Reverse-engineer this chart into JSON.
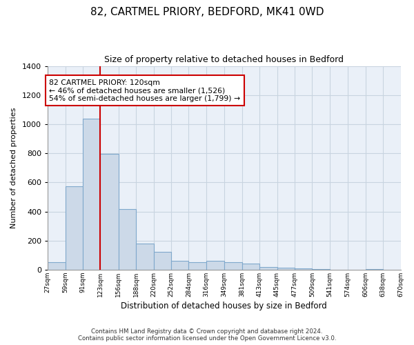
{
  "title": "82, CARTMEL PRIORY, BEDFORD, MK41 0WD",
  "subtitle": "Size of property relative to detached houses in Bedford",
  "xlabel": "Distribution of detached houses by size in Bedford",
  "ylabel": "Number of detached properties",
  "bar_color": "#ccd9e8",
  "bar_edge_color": "#7fa8cc",
  "annotation_text_line1": "82 CARTMEL PRIORY: 120sqm",
  "annotation_text_line2": "← 46% of detached houses are smaller (1,526)",
  "annotation_text_line3": "54% of semi-detached houses are larger (1,799) →",
  "bin_edges": [
    27,
    59,
    91,
    123,
    156,
    188,
    220,
    252,
    284,
    316,
    349,
    381,
    413,
    445,
    477,
    509,
    541,
    574,
    606,
    638,
    670
  ],
  "bin_labels": [
    "27sqm",
    "59sqm",
    "91sqm",
    "123sqm",
    "156sqm",
    "188sqm",
    "220sqm",
    "252sqm",
    "284sqm",
    "316sqm",
    "349sqm",
    "381sqm",
    "413sqm",
    "445sqm",
    "477sqm",
    "509sqm",
    "541sqm",
    "574sqm",
    "606sqm",
    "638sqm",
    "670sqm"
  ],
  "counts": [
    50,
    575,
    1040,
    795,
    415,
    180,
    125,
    62,
    50,
    60,
    50,
    40,
    20,
    12,
    7,
    4,
    0,
    0,
    5,
    0
  ],
  "red_line_x": 123,
  "ylim": [
    0,
    1400
  ],
  "yticks": [
    0,
    200,
    400,
    600,
    800,
    1000,
    1200,
    1400
  ],
  "footer_line1": "Contains HM Land Registry data © Crown copyright and database right 2024.",
  "footer_line2": "Contains public sector information licensed under the Open Government Licence v3.0.",
  "background_color": "#ffffff",
  "plot_bg_color": "#eaf0f8",
  "grid_color": "#c8d4e0"
}
